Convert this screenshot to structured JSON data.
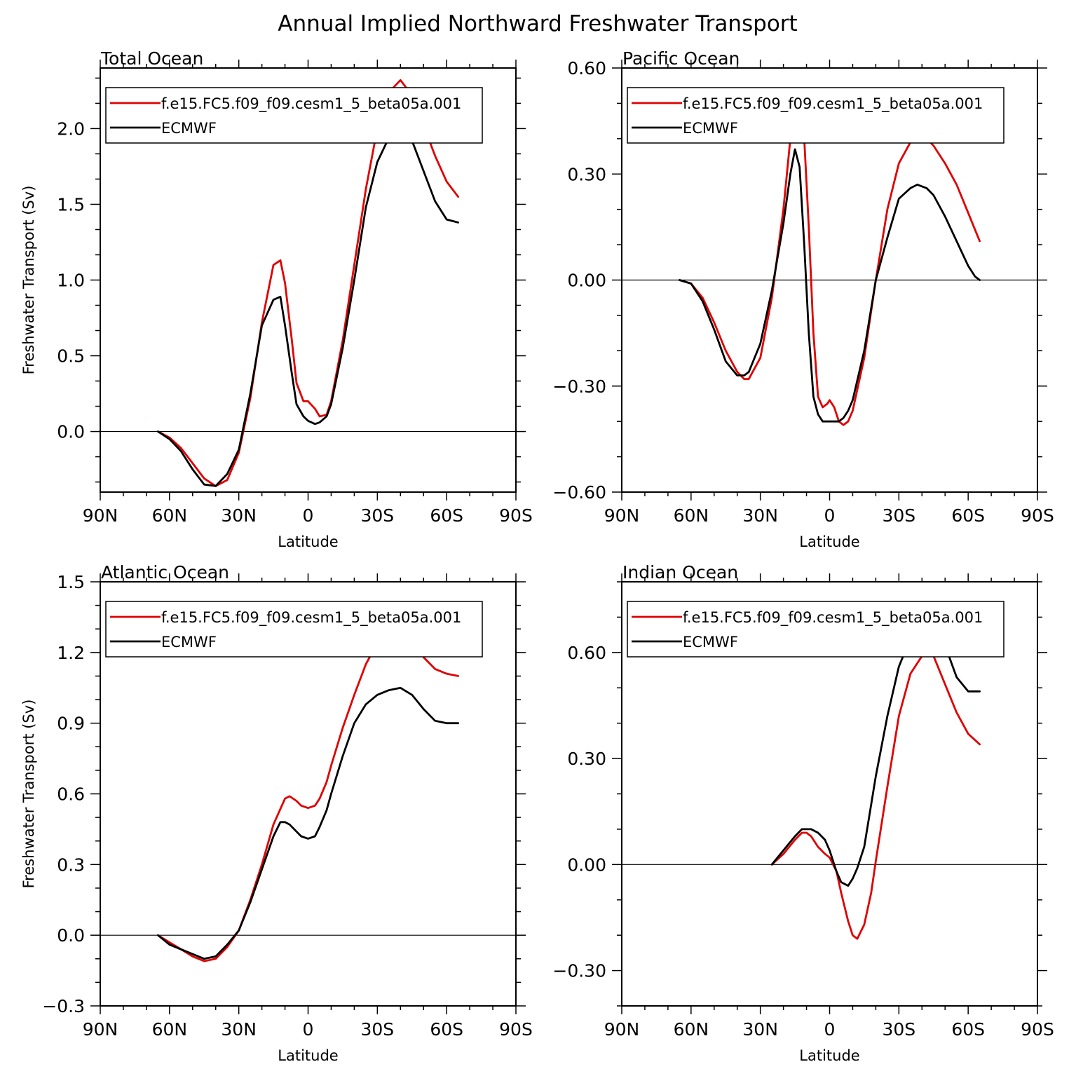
{
  "title": "Annual Implied Northward Freshwater Transport",
  "colors": {
    "model": "#e00000",
    "obs": "#000000",
    "axis": "#000000"
  },
  "chart_data": [
    {
      "type": "line",
      "title": "Total Ocean",
      "xlabel": "Latitude",
      "ylabel": "Freshwater Transport (Sv)",
      "xlim": [
        90,
        -90
      ],
      "ylim": [
        -0.4,
        2.4
      ],
      "x_ticks": [
        90,
        60,
        30,
        0,
        -30,
        -60,
        -90
      ],
      "x_tick_labels": [
        "90N",
        "60N",
        "30N",
        "0",
        "30S",
        "60S",
        "90S"
      ],
      "y_ticks": [
        0,
        0.5,
        1,
        1.5,
        2
      ],
      "y_tick_labels": [
        "0.0",
        "0.5",
        "1.0",
        "1.5",
        "2.0"
      ],
      "legend": [
        "f.e15.FC5.f09_f09.cesm1_5_beta05a.001",
        "ECMWF"
      ],
      "legend_position": "top",
      "zero_line": true,
      "series": [
        {
          "name": "f.e15.FC5.f09_f09.cesm1_5_beta05a.001",
          "color": "#e00000",
          "x": [
            65,
            60,
            55,
            50,
            45,
            40,
            35,
            30,
            25,
            20,
            15,
            12,
            10,
            7,
            5,
            2,
            0,
            -3,
            -5,
            -8,
            -10,
            -15,
            -20,
            -25,
            -30,
            -35,
            -40,
            -45,
            -50,
            -55,
            -60,
            -65
          ],
          "y": [
            0.0,
            -0.04,
            -0.11,
            -0.21,
            -0.31,
            -0.36,
            -0.32,
            -0.14,
            0.22,
            0.72,
            1.1,
            1.13,
            0.98,
            0.6,
            0.32,
            0.2,
            0.2,
            0.15,
            0.1,
            0.11,
            0.2,
            0.6,
            1.1,
            1.6,
            2.0,
            2.24,
            2.32,
            2.22,
            2.02,
            1.82,
            1.65,
            1.55
          ]
        },
        {
          "name": "ECMWF",
          "color": "#000000",
          "x": [
            65,
            60,
            55,
            50,
            45,
            40,
            35,
            30,
            25,
            20,
            15,
            12,
            10,
            7,
            5,
            2,
            0,
            -3,
            -5,
            -8,
            -10,
            -15,
            -20,
            -25,
            -30,
            -35,
            -40,
            -45,
            -50,
            -55,
            -60,
            -65
          ],
          "y": [
            0.0,
            -0.05,
            -0.13,
            -0.25,
            -0.35,
            -0.36,
            -0.28,
            -0.12,
            0.25,
            0.7,
            0.87,
            0.89,
            0.7,
            0.38,
            0.18,
            0.1,
            0.07,
            0.05,
            0.06,
            0.1,
            0.18,
            0.55,
            1.0,
            1.48,
            1.78,
            1.94,
            2.01,
            1.92,
            1.72,
            1.52,
            1.4,
            1.38
          ]
        }
      ]
    },
    {
      "type": "line",
      "title": "Pacific Ocean",
      "xlabel": "Latitude",
      "ylabel": "",
      "xlim": [
        90,
        -90
      ],
      "ylim": [
        -0.6,
        0.6
      ],
      "x_ticks": [
        90,
        60,
        30,
        0,
        -30,
        -60,
        -90
      ],
      "x_tick_labels": [
        "90N",
        "60N",
        "30N",
        "0",
        "30S",
        "60S",
        "90S"
      ],
      "y_ticks": [
        -0.6,
        -0.3,
        0,
        0.3,
        0.6
      ],
      "y_tick_labels": [
        "−0.60",
        "−0.30",
        "0.00",
        "0.30",
        "0.60"
      ],
      "legend": [
        "f.e15.FC5.f09_f09.cesm1_5_beta05a.001",
        "ECMWF"
      ],
      "legend_position": "top",
      "zero_line": true,
      "series": [
        {
          "name": "f.e15.FC5.f09_f09.cesm1_5_beta05a.001",
          "color": "#e00000",
          "x": [
            65,
            60,
            55,
            50,
            45,
            40,
            37,
            35,
            30,
            25,
            20,
            17,
            15,
            13,
            11,
            9,
            7,
            5,
            3,
            1,
            0,
            -2,
            -4,
            -6,
            -8,
            -10,
            -15,
            -20,
            -25,
            -30,
            -35,
            -38,
            -42,
            -45,
            -50,
            -55,
            -60,
            -65
          ],
          "y": [
            0.0,
            -0.01,
            -0.05,
            -0.12,
            -0.2,
            -0.26,
            -0.28,
            -0.28,
            -0.22,
            -0.05,
            0.2,
            0.4,
            0.48,
            0.49,
            0.4,
            0.15,
            -0.15,
            -0.33,
            -0.36,
            -0.35,
            -0.34,
            -0.36,
            -0.4,
            -0.41,
            -0.4,
            -0.37,
            -0.22,
            0.0,
            0.2,
            0.33,
            0.39,
            0.41,
            0.4,
            0.38,
            0.33,
            0.27,
            0.19,
            0.11
          ]
        },
        {
          "name": "ECMWF",
          "color": "#000000",
          "x": [
            65,
            60,
            55,
            50,
            45,
            40,
            37,
            35,
            30,
            25,
            20,
            17,
            15,
            13,
            11,
            9,
            7,
            5,
            3,
            1,
            0,
            -2,
            -4,
            -6,
            -8,
            -10,
            -15,
            -20,
            -25,
            -30,
            -35,
            -38,
            -42,
            -45,
            -50,
            -55,
            -60,
            -63,
            -65
          ],
          "y": [
            0.0,
            -0.01,
            -0.06,
            -0.14,
            -0.23,
            -0.27,
            -0.27,
            -0.26,
            -0.18,
            -0.03,
            0.16,
            0.3,
            0.37,
            0.32,
            0.1,
            -0.15,
            -0.33,
            -0.38,
            -0.4,
            -0.4,
            -0.4,
            -0.4,
            -0.4,
            -0.39,
            -0.37,
            -0.34,
            -0.2,
            0.0,
            0.12,
            0.23,
            0.26,
            0.27,
            0.26,
            0.24,
            0.18,
            0.11,
            0.04,
            0.01,
            0.0
          ]
        }
      ]
    },
    {
      "type": "line",
      "title": "Atlantic Ocean",
      "xlabel": "Latitude",
      "ylabel": "Freshwater Transport (Sv)",
      "xlim": [
        90,
        -90
      ],
      "ylim": [
        -0.3,
        1.5
      ],
      "x_ticks": [
        90,
        60,
        30,
        0,
        -30,
        -60,
        -90
      ],
      "x_tick_labels": [
        "90N",
        "60N",
        "30N",
        "0",
        "30S",
        "60S",
        "90S"
      ],
      "y_ticks": [
        -0.3,
        0,
        0.3,
        0.6,
        0.9,
        1.2,
        1.5
      ],
      "y_tick_labels": [
        "−0.3",
        "0.0",
        "0.3",
        "0.6",
        "0.9",
        "1.2",
        "1.5"
      ],
      "legend": [
        "f.e15.FC5.f09_f09.cesm1_5_beta05a.001",
        "ECMWF"
      ],
      "legend_position": "top",
      "zero_line": true,
      "series": [
        {
          "name": "f.e15.FC5.f09_f09.cesm1_5_beta05a.001",
          "color": "#e00000",
          "x": [
            65,
            60,
            55,
            50,
            45,
            40,
            35,
            30,
            25,
            20,
            15,
            10,
            8,
            5,
            3,
            0,
            -3,
            -5,
            -8,
            -10,
            -15,
            -20,
            -25,
            -30,
            -35,
            -40,
            -45,
            -50,
            -55,
            -60,
            -65
          ],
          "y": [
            0.0,
            -0.03,
            -0.06,
            -0.09,
            -0.11,
            -0.1,
            -0.05,
            0.02,
            0.15,
            0.3,
            0.47,
            0.58,
            0.59,
            0.57,
            0.55,
            0.54,
            0.55,
            0.58,
            0.65,
            0.72,
            0.88,
            1.02,
            1.15,
            1.24,
            1.3,
            1.31,
            1.25,
            1.18,
            1.13,
            1.11,
            1.1
          ]
        },
        {
          "name": "ECMWF",
          "color": "#000000",
          "x": [
            65,
            60,
            55,
            50,
            45,
            40,
            35,
            30,
            25,
            20,
            15,
            12,
            10,
            8,
            5,
            3,
            0,
            -3,
            -5,
            -8,
            -10,
            -15,
            -20,
            -25,
            -30,
            -35,
            -40,
            -45,
            -50,
            -55,
            -60,
            -65
          ],
          "y": [
            0.0,
            -0.04,
            -0.06,
            -0.08,
            -0.1,
            -0.09,
            -0.04,
            0.02,
            0.14,
            0.28,
            0.42,
            0.48,
            0.48,
            0.47,
            0.44,
            0.42,
            0.41,
            0.42,
            0.46,
            0.53,
            0.6,
            0.76,
            0.9,
            0.98,
            1.02,
            1.04,
            1.05,
            1.02,
            0.96,
            0.91,
            0.9,
            0.9
          ]
        }
      ]
    },
    {
      "type": "line",
      "title": "Indian Ocean",
      "xlabel": "Latitude",
      "ylabel": "",
      "xlim": [
        90,
        -90
      ],
      "ylim": [
        -0.4,
        0.8
      ],
      "x_ticks": [
        90,
        60,
        30,
        0,
        -30,
        -60,
        -90
      ],
      "x_tick_labels": [
        "90N",
        "60N",
        "30N",
        "0",
        "30S",
        "60S",
        "90S"
      ],
      "y_ticks": [
        -0.3,
        0,
        0.3,
        0.6
      ],
      "y_tick_labels": [
        "−0.30",
        "0.00",
        "0.30",
        "0.60"
      ],
      "legend": [
        "f.e15.FC5.f09_f09.cesm1_5_beta05a.001",
        "ECMWF"
      ],
      "legend_position": "top",
      "zero_line": true,
      "series": [
        {
          "name": "f.e15.FC5.f09_f09.cesm1_5_beta05a.001",
          "color": "#e00000",
          "x": [
            25,
            20,
            15,
            12,
            10,
            8,
            5,
            2,
            0,
            -3,
            -5,
            -8,
            -10,
            -12,
            -15,
            -18,
            -20,
            -25,
            -30,
            -35,
            -40,
            -42,
            -45,
            -50,
            -55,
            -60,
            -65
          ],
          "y": [
            0.0,
            0.03,
            0.07,
            0.09,
            0.09,
            0.08,
            0.05,
            0.03,
            0.02,
            -0.02,
            -0.08,
            -0.16,
            -0.2,
            -0.21,
            -0.17,
            -0.08,
            0.01,
            0.22,
            0.42,
            0.54,
            0.59,
            0.6,
            0.59,
            0.51,
            0.43,
            0.37,
            0.34
          ]
        },
        {
          "name": "ECMWF",
          "color": "#000000",
          "x": [
            25,
            20,
            15,
            12,
            10,
            8,
            5,
            2,
            0,
            -3,
            -5,
            -8,
            -10,
            -12,
            -15,
            -18,
            -20,
            -25,
            -30,
            -35,
            -40,
            -42,
            -45,
            -50,
            -55,
            -60,
            -65
          ],
          "y": [
            0.0,
            0.04,
            0.08,
            0.1,
            0.1,
            0.1,
            0.09,
            0.07,
            0.04,
            -0.02,
            -0.05,
            -0.06,
            -0.04,
            -0.01,
            0.05,
            0.17,
            0.25,
            0.42,
            0.56,
            0.64,
            0.7,
            0.7,
            0.69,
            0.62,
            0.53,
            0.49,
            0.49
          ]
        }
      ]
    }
  ]
}
